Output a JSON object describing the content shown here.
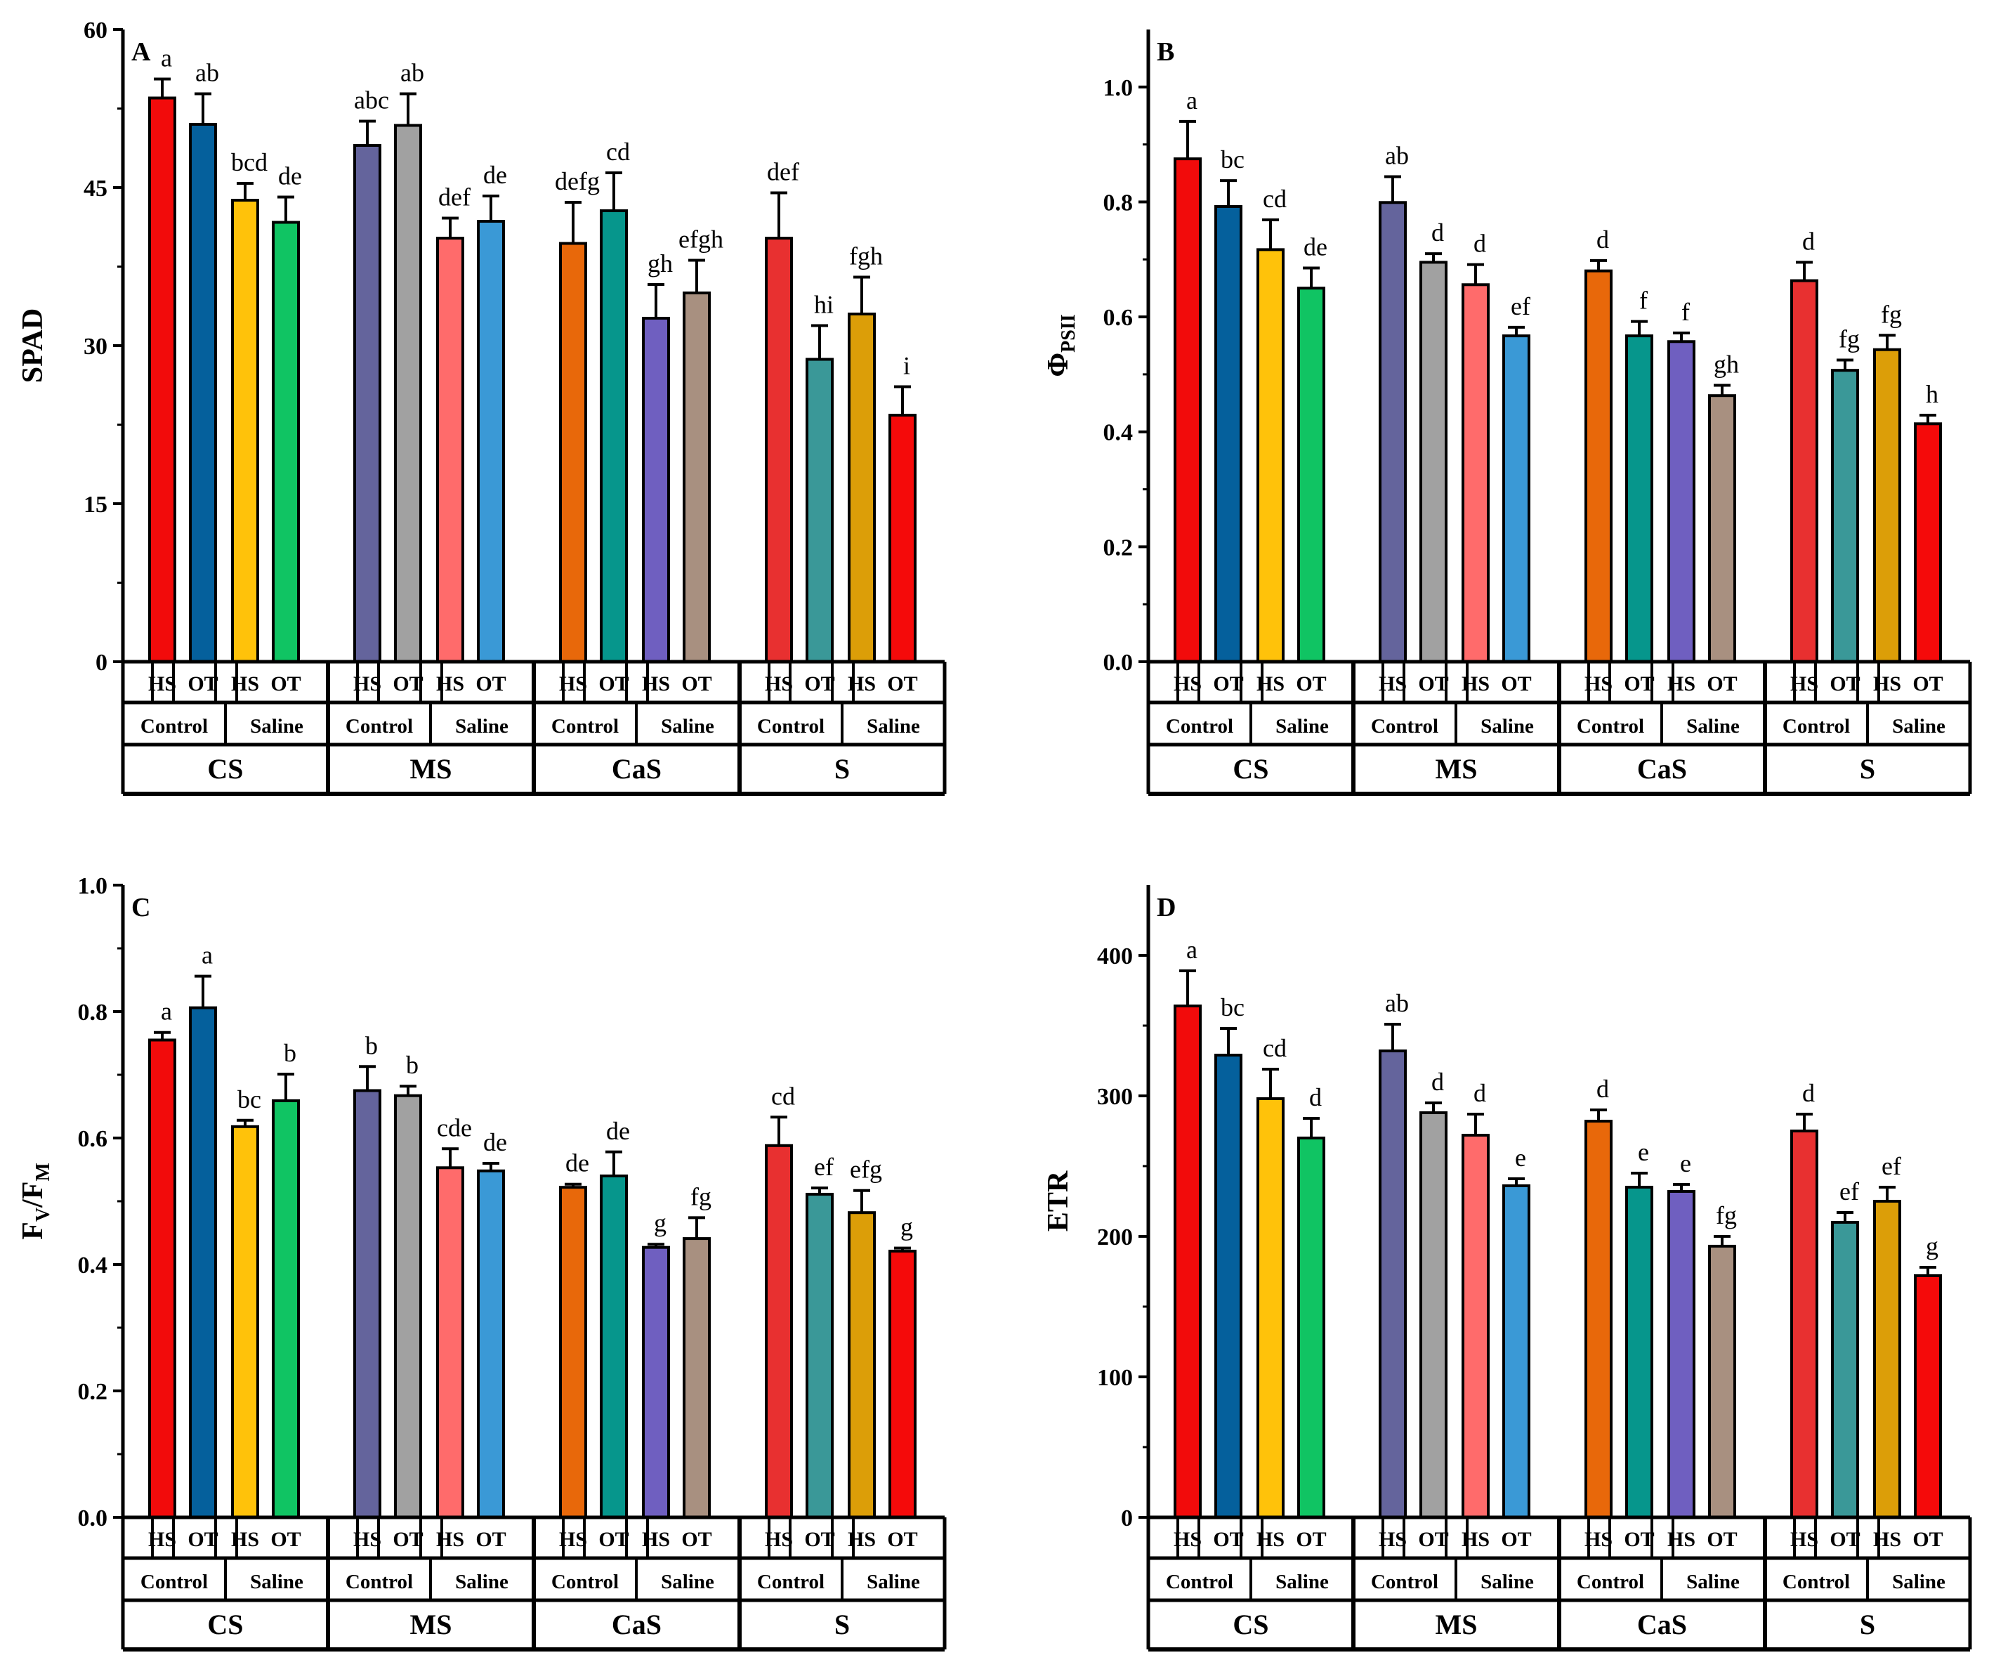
{
  "figure": {
    "row1_labels": [
      "HS",
      "OT",
      "HS",
      "OT"
    ],
    "row2_labels": [
      "Control",
      "Saline"
    ],
    "groups": [
      "CS",
      "MS",
      "CaS",
      "S"
    ],
    "bar_colors": [
      [
        "#f20b0b",
        "#05609c",
        "#ffc20a",
        "#10c463"
      ],
      [
        "#64649c",
        "#a1a1a1",
        "#ff6b6b",
        "#3a99d6"
      ],
      [
        "#e8680a",
        "#06968c",
        "#6f5fc0",
        "#a89080"
      ],
      [
        "#e83030",
        "#3a9898",
        "#dc9e08",
        "#f50a0a"
      ]
    ]
  },
  "chart_data": [
    {
      "type": "bar",
      "panel": "A",
      "ylabel_main": "SPAD",
      "ylabel_sub": "",
      "ylabel_tail": "",
      "ylim": [
        0,
        60
      ],
      "yticks": [
        0,
        15,
        30,
        45,
        60
      ],
      "tick_labels": [
        "0",
        "15",
        "30",
        "45",
        "60"
      ],
      "values": [
        53.5,
        51.0,
        43.8,
        41.7,
        49.0,
        50.9,
        40.2,
        41.8,
        39.7,
        42.8,
        32.6,
        35.0,
        40.2,
        28.7,
        33.0,
        23.4
      ],
      "errors": [
        1.8,
        2.9,
        1.6,
        2.4,
        2.3,
        3.0,
        1.9,
        2.4,
        3.9,
        3.6,
        3.2,
        3.1,
        4.3,
        3.2,
        3.5,
        2.7
      ],
      "letters": [
        "a",
        "ab",
        "bcd",
        "de",
        "abc",
        "ab",
        "def",
        "de",
        "defg",
        "cd",
        "gh",
        "efgh",
        "def",
        "hi",
        "fgh",
        "i"
      ]
    },
    {
      "type": "bar",
      "panel": "B",
      "ylabel_main": "Φ",
      "ylabel_sub": "PSII",
      "ylabel_tail": "",
      "ylim": [
        0,
        1.1
      ],
      "yticks": [
        0,
        0.2,
        0.4,
        0.6,
        0.8,
        1.0
      ],
      "tick_labels": [
        "0.0",
        "0.2",
        "0.4",
        "0.6",
        "0.8",
        "1.0"
      ],
      "values": [
        0.875,
        0.792,
        0.717,
        0.65,
        0.799,
        0.695,
        0.656,
        0.567,
        0.68,
        0.567,
        0.557,
        0.463,
        0.663,
        0.507,
        0.543,
        0.414
      ],
      "errors": [
        0.065,
        0.045,
        0.052,
        0.035,
        0.045,
        0.015,
        0.035,
        0.015,
        0.018,
        0.025,
        0.015,
        0.018,
        0.032,
        0.018,
        0.025,
        0.015
      ],
      "letters": [
        "a",
        "bc",
        "cd",
        "de",
        "ab",
        "d",
        "d",
        "ef",
        "d",
        "f",
        "f",
        "gh",
        "d",
        "fg",
        "fg",
        "h"
      ]
    },
    {
      "type": "bar",
      "panel": "C",
      "ylabel_main": "F",
      "ylabel_sub": "V",
      "ylabel_tail": "/F",
      "ylabel_sub2": "M",
      "ylim": [
        0,
        1.0
      ],
      "yticks": [
        0,
        0.2,
        0.4,
        0.6,
        0.8,
        1.0
      ],
      "tick_labels": [
        "0.0",
        "0.2",
        "0.4",
        "0.6",
        "0.8",
        "1.0"
      ],
      "values": [
        0.755,
        0.806,
        0.618,
        0.659,
        0.675,
        0.667,
        0.553,
        0.548,
        0.522,
        0.54,
        0.427,
        0.441,
        0.588,
        0.511,
        0.482,
        0.421
      ],
      "errors": [
        0.012,
        0.05,
        0.01,
        0.042,
        0.038,
        0.015,
        0.03,
        0.012,
        0.005,
        0.038,
        0.005,
        0.033,
        0.045,
        0.01,
        0.035,
        0.005
      ],
      "letters": [
        "a",
        "a",
        "bc",
        "b",
        "b",
        "b",
        "cde",
        "de",
        "de",
        "de",
        "g",
        "fg",
        "cd",
        "ef",
        "efg",
        "g"
      ]
    },
    {
      "type": "bar",
      "panel": "D",
      "ylabel_main": "ETR",
      "ylabel_sub": "",
      "ylabel_tail": "",
      "ylim": [
        0,
        450
      ],
      "yticks": [
        0,
        100,
        200,
        300,
        400
      ],
      "tick_labels": [
        "0",
        "100",
        "200",
        "300",
        "400"
      ],
      "values": [
        364,
        329,
        298,
        270,
        332,
        288,
        272,
        236,
        282,
        235,
        232,
        193,
        275,
        210,
        225,
        172
      ],
      "errors": [
        25,
        19,
        21,
        14,
        19,
        7,
        15,
        5,
        8,
        10,
        5,
        7,
        12,
        7,
        10,
        6
      ],
      "letters": [
        "a",
        "bc",
        "cd",
        "d",
        "ab",
        "d",
        "d",
        "e",
        "d",
        "e",
        "e",
        "fg",
        "d",
        "ef",
        "ef",
        "g"
      ]
    }
  ]
}
